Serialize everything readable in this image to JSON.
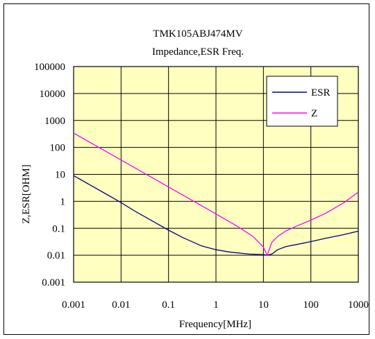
{
  "chart_data": {
    "type": "line",
    "title": "TMK105ABJ474MV",
    "subtitle": "Impedance,ESR Freq.",
    "xlabel": "Frequency[MHz]",
    "ylabel": "Z,ESR[OHM]",
    "x_scale": "log",
    "y_scale": "log",
    "xlim": [
      0.001,
      1000
    ],
    "ylim": [
      0.001,
      100000
    ],
    "x_ticks": [
      "0.001",
      "0.01",
      "0.1",
      "1",
      "10",
      "100",
      "1000"
    ],
    "y_ticks": [
      "0.001",
      "0.01",
      "0.1",
      "1",
      "10",
      "100",
      "1000",
      "10000",
      "100000"
    ],
    "grid": true,
    "legend_position": "top-right",
    "colors": {
      "plot_bg": "#ffffc0",
      "esr": "#000080",
      "z": "#ff00ff"
    },
    "series": [
      {
        "name": "ESR",
        "x": [
          0.001,
          0.002,
          0.005,
          0.01,
          0.02,
          0.05,
          0.1,
          0.2,
          0.5,
          1,
          2,
          5,
          10,
          12,
          15,
          20,
          30,
          50,
          100,
          200,
          500,
          1000
        ],
        "values": [
          9,
          4.5,
          1.8,
          0.9,
          0.42,
          0.17,
          0.085,
          0.045,
          0.022,
          0.016,
          0.013,
          0.011,
          0.0105,
          0.01,
          0.011,
          0.016,
          0.021,
          0.025,
          0.032,
          0.042,
          0.058,
          0.078
        ]
      },
      {
        "name": "Z",
        "x": [
          0.001,
          0.01,
          0.1,
          1,
          3,
          6,
          10,
          12,
          15,
          20,
          30,
          50,
          100,
          200,
          500,
          1000
        ],
        "values": [
          340,
          34,
          3.4,
          0.34,
          0.11,
          0.05,
          0.02,
          0.01,
          0.03,
          0.05,
          0.08,
          0.12,
          0.2,
          0.35,
          0.9,
          2.2
        ]
      }
    ]
  }
}
